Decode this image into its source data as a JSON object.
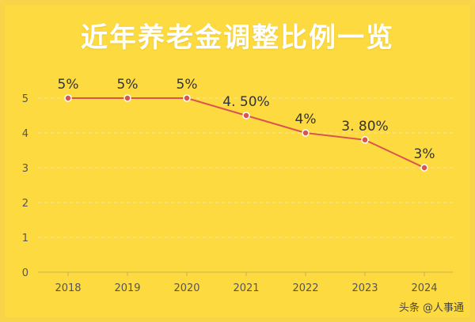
{
  "chart_data": {
    "type": "line",
    "title": "近年养老金调整比例一览",
    "categories": [
      "2018",
      "2019",
      "2020",
      "2021",
      "2022",
      "2023",
      "2024"
    ],
    "values": [
      5,
      5,
      5,
      4.5,
      4,
      3.8,
      3
    ],
    "data_labels": [
      "5%",
      "5%",
      "5%",
      "4. 50%",
      "4%",
      "3. 80%",
      "3%"
    ],
    "ylim": [
      0,
      5
    ],
    "yticks": [
      "0",
      "1",
      "2",
      "3",
      "4",
      "5"
    ],
    "grid": true,
    "line_color": "#d9534f",
    "marker_color": "#d9534f",
    "grid_color": "#f5e7a8",
    "background_color": "#fdda3f"
  },
  "watermark": "头条 @人事通"
}
